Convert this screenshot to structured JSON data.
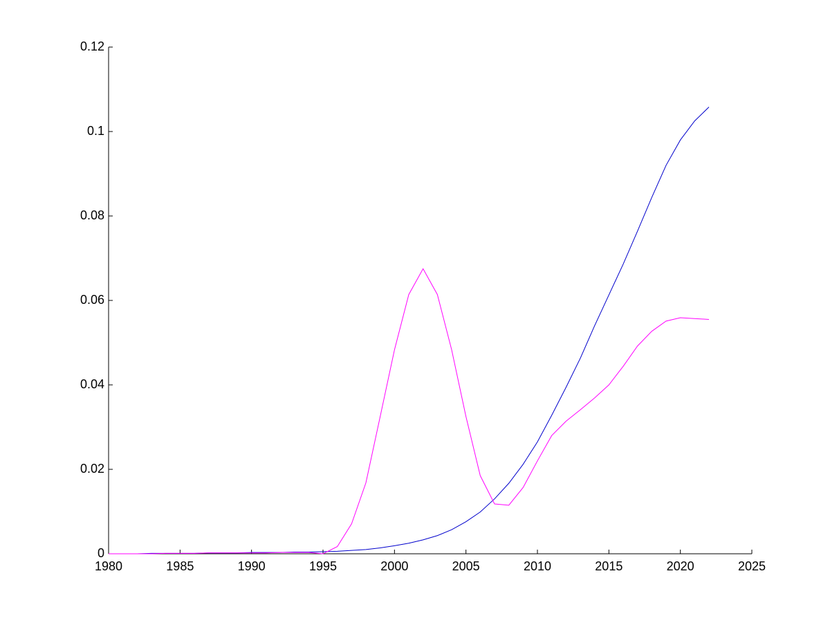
{
  "chart_data": {
    "type": "line",
    "x": [
      1980,
      1981,
      1982,
      1983,
      1984,
      1985,
      1986,
      1987,
      1988,
      1989,
      1990,
      1991,
      1992,
      1993,
      1994,
      1995,
      1996,
      1997,
      1998,
      1999,
      2000,
      2001,
      2002,
      2003,
      2004,
      2005,
      2006,
      2007,
      2008,
      2009,
      2010,
      2011,
      2012,
      2013,
      2014,
      2015,
      2016,
      2017,
      2018,
      2019,
      2020,
      2021,
      2022
    ],
    "series": [
      {
        "color": "#0000cc",
        "values": [
          0,
          0,
          0,
          0.0001,
          0.0001,
          0.0001,
          0.0001,
          0.0002,
          0.0002,
          0.0002,
          0.0003,
          0.0003,
          0.0003,
          0.0004,
          0.0004,
          0.0005,
          0.0006,
          0.0008,
          0.001,
          0.0014,
          0.0019,
          0.0025,
          0.0033,
          0.0043,
          0.0057,
          0.0076,
          0.0099,
          0.013,
          0.0167,
          0.0212,
          0.0265,
          0.0328,
          0.0394,
          0.0463,
          0.054,
          0.0613,
          0.0686,
          0.0764,
          0.0844,
          0.092,
          0.098,
          0.1025,
          0.1058
        ]
      },
      {
        "color": "#ff00ff",
        "values": [
          0,
          0,
          0,
          0,
          0.0001,
          0.0001,
          0.0001,
          0.0002,
          0.0002,
          0.0002,
          0.0002,
          0.0002,
          0.0003,
          0.0003,
          0.0003,
          0,
          0.0017,
          0.0071,
          0.0168,
          0.0325,
          0.0483,
          0.0614,
          0.0675,
          0.0614,
          0.0483,
          0.0325,
          0.0185,
          0.0118,
          0.0115,
          0.0157,
          0.022,
          0.028,
          0.0314,
          0.0341,
          0.0369,
          0.04,
          0.0444,
          0.0492,
          0.0527,
          0.0551,
          0.0559,
          0.0557,
          0.0555
        ]
      }
    ],
    "xlim": [
      1980,
      2025
    ],
    "xticks": [
      1980,
      1985,
      1990,
      1995,
      2000,
      2005,
      2010,
      2015,
      2020,
      2025
    ],
    "ylim": [
      0,
      0.12
    ],
    "yticks": [
      0,
      0.02,
      0.04,
      0.06,
      0.08,
      0.1,
      0.12
    ]
  }
}
